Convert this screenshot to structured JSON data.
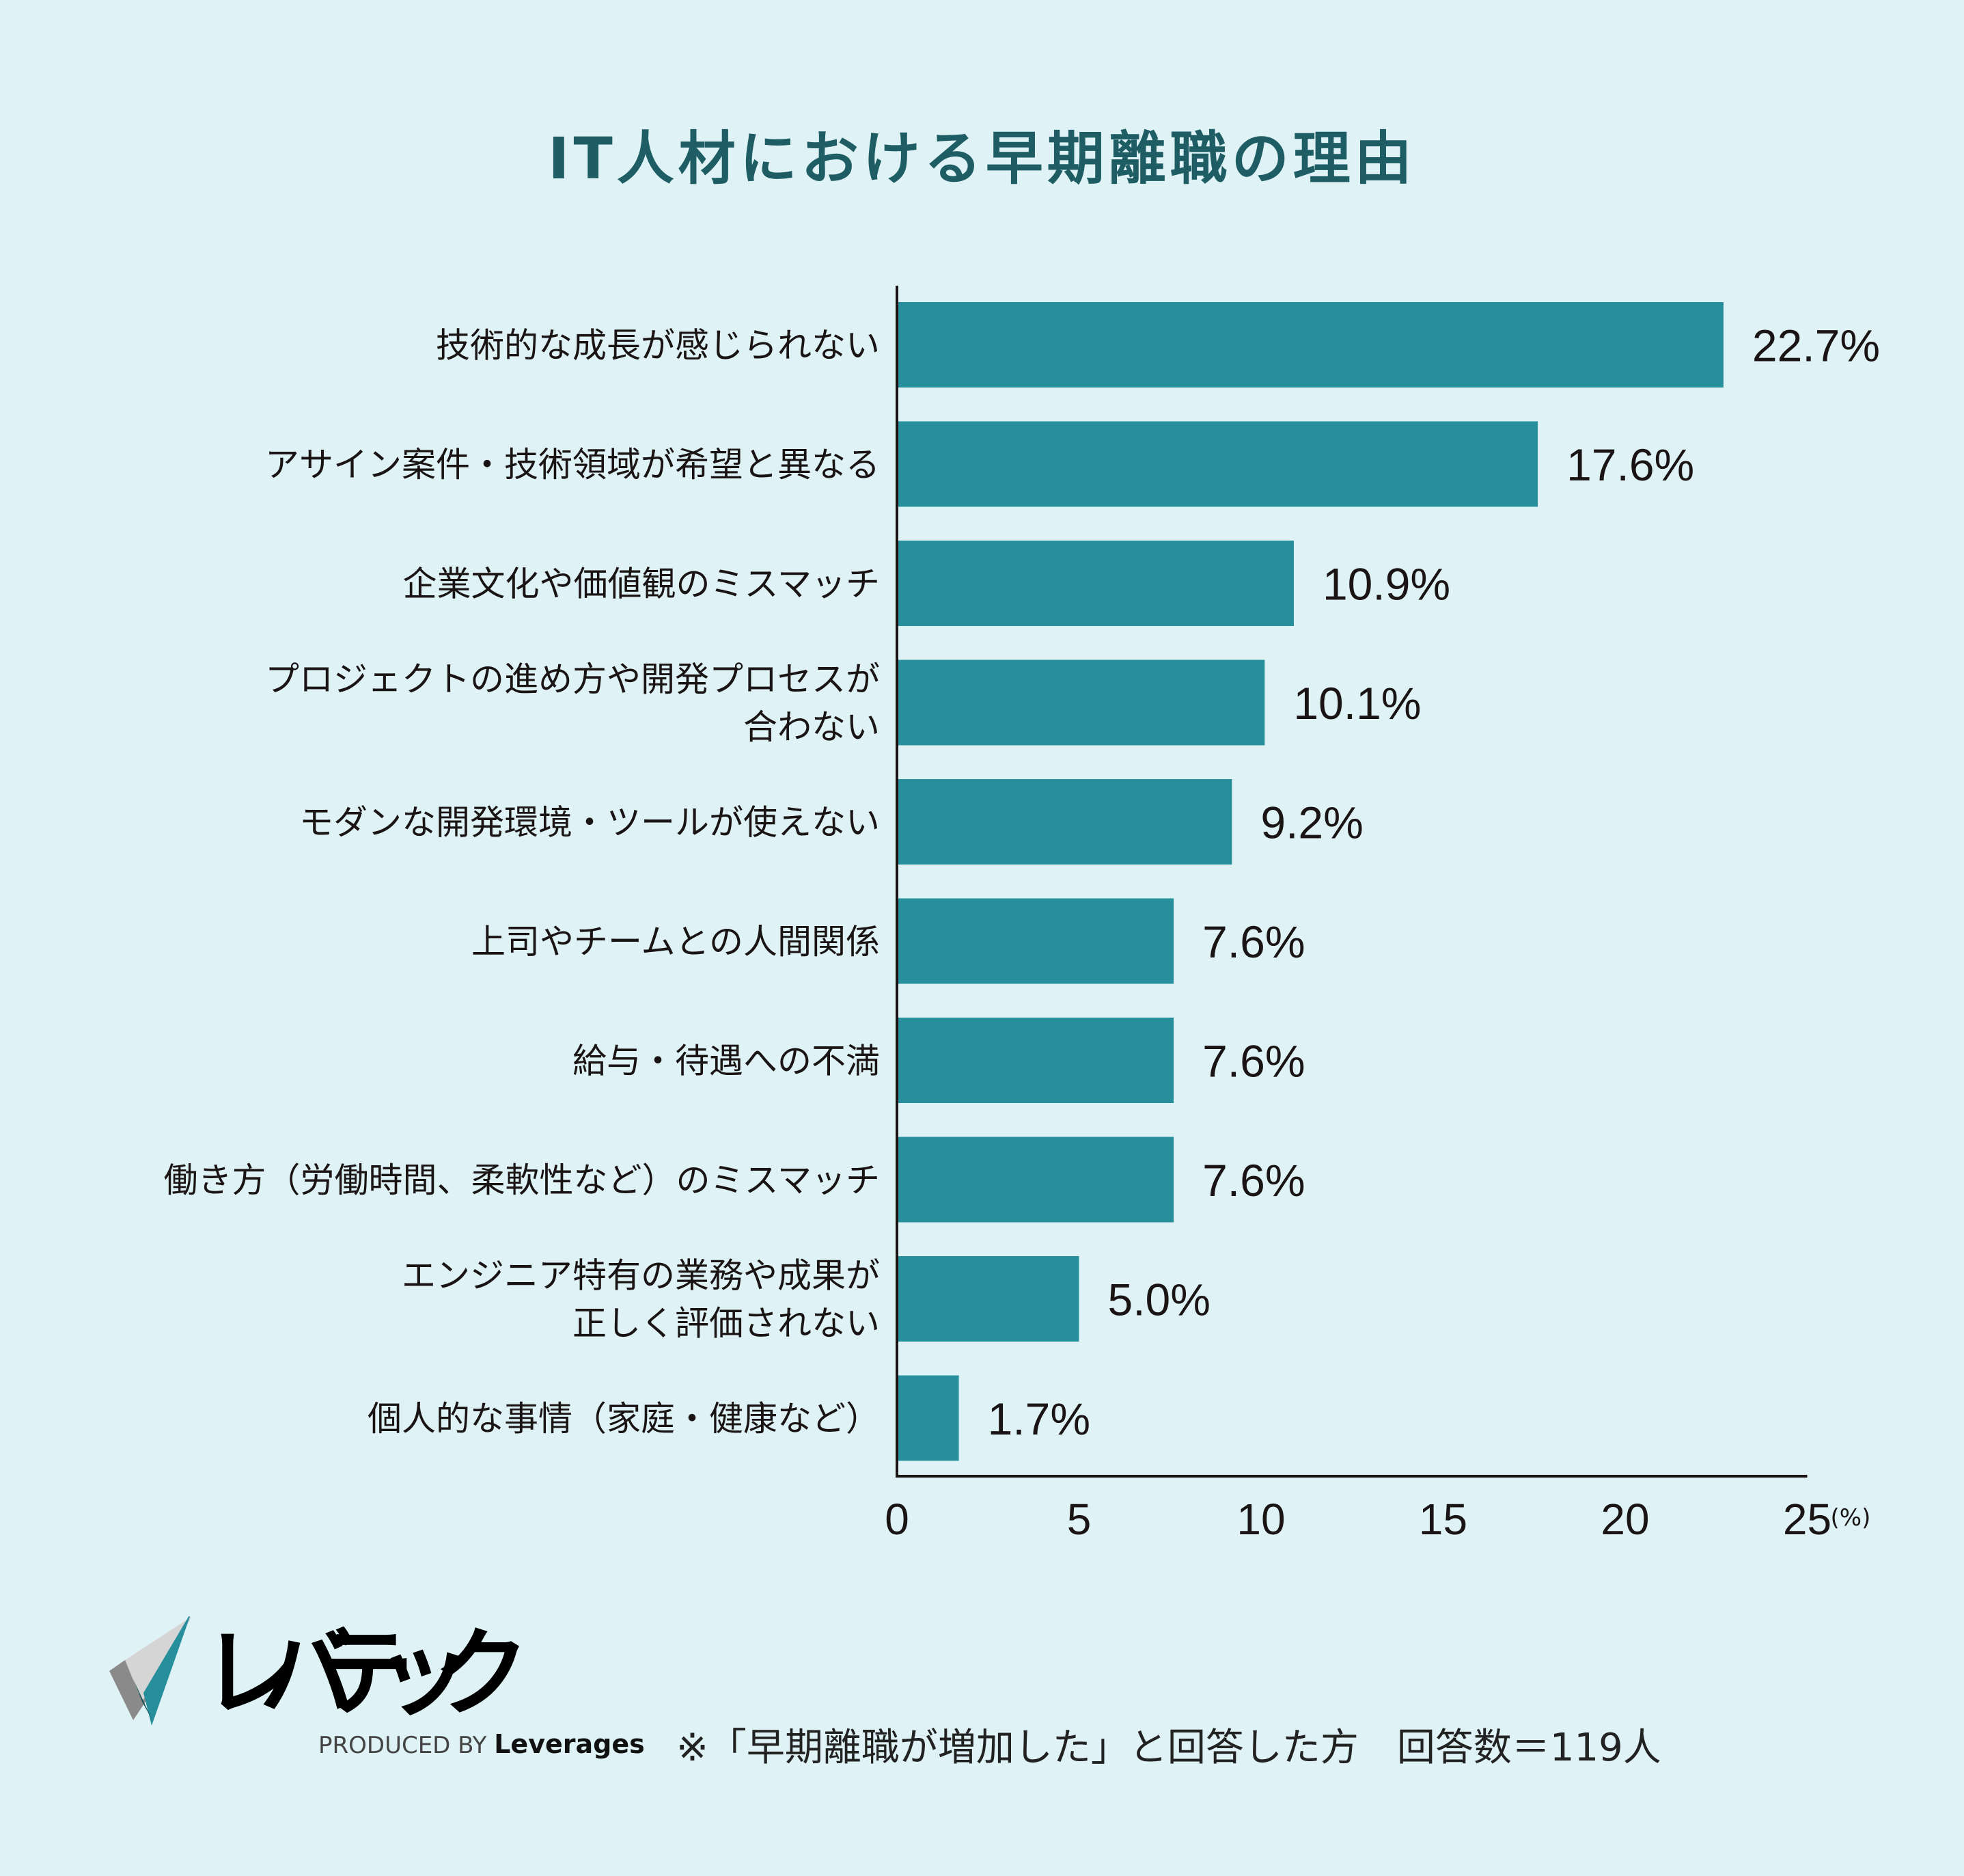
{
  "title": "IT人材における早期離職の理由",
  "chart_data": {
    "type": "bar",
    "orientation": "horizontal",
    "title": "IT人材における早期離職の理由",
    "categories": [
      [
        "技術的な成長が感じられない"
      ],
      [
        "アサイン案件・技術領域が希望と異なる"
      ],
      [
        "企業文化や価値観のミスマッチ"
      ],
      [
        "プロジェクトの進め方や開発プロセスが",
        "合わない"
      ],
      [
        "モダンな開発環境・ツールが使えない"
      ],
      [
        "上司やチームとの人間関係"
      ],
      [
        "給与・待遇への不満"
      ],
      [
        "働き方（労働時間、柔軟性など）のミスマッチ"
      ],
      [
        "エンジニア特有の業務や成果が",
        "正しく評価されない"
      ],
      [
        "個人的な事情（家庭・健康など）"
      ]
    ],
    "values": [
      22.7,
      17.6,
      10.9,
      10.1,
      9.2,
      7.6,
      7.6,
      7.6,
      5.0,
      1.7
    ],
    "data_labels": [
      "22.7%",
      "17.6%",
      "10.9%",
      "10.1%",
      "9.2%",
      "7.6%",
      "7.6%",
      "7.6%",
      "5.0%",
      "1.7%"
    ],
    "xlim": [
      0,
      25
    ],
    "xticks": [
      "0",
      "5",
      "10",
      "15",
      "20",
      "25"
    ],
    "xunit": "(%)",
    "grid": false,
    "bar_color": "#278f9c"
  },
  "logo": {
    "text": "レバテック",
    "produced_by": "PRODUCED BY",
    "brand": "Leverages"
  },
  "footnote": "※「早期離職が増加した」と回答した方　回答数＝119人"
}
